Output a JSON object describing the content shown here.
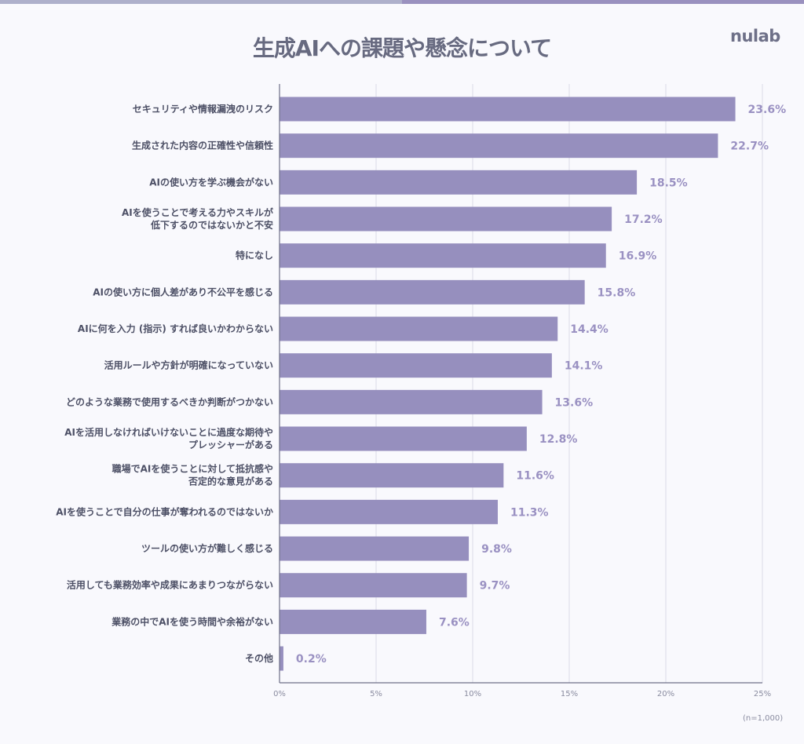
{
  "logo": "nulab",
  "note": "(n=1,000)",
  "colors": {
    "bar": "#968fbe",
    "value": "#9a91c2",
    "strip_left": "#aeb0cb",
    "strip_right": "#9a91bf"
  },
  "chart_data": {
    "type": "bar",
    "orientation": "horizontal",
    "title": "生成AIへの課題や懸念について",
    "categories": [
      [
        "セキュリティや情報漏洩のリスク"
      ],
      [
        "生成された内容の正確性や信頼性"
      ],
      [
        "AIの使い方を学ぶ機会がない"
      ],
      [
        "AIを使うことで考える力やスキルが",
        "低下するのではないかと不安"
      ],
      [
        "特になし"
      ],
      [
        "AIの使い方に個人差があり不公平を感じる"
      ],
      [
        "AIに何を入力 (指示) すれば良いかわからない"
      ],
      [
        "活用ルールや方針が明確になっていない"
      ],
      [
        "どのような業務で使用するべきか判断がつかない"
      ],
      [
        "AIを活用しなければいけないことに過度な期待や",
        "プレッシャーがある"
      ],
      [
        "職場でAIを使うことに対して抵抗感や",
        "否定的な意見がある"
      ],
      [
        "AIを使うことで自分の仕事が奪われるのではないか"
      ],
      [
        "ツールの使い方が難しく感じる"
      ],
      [
        "活用しても業務効率や成果にあまりつながらない"
      ],
      [
        "業務の中でAIを使う時間や余裕がない"
      ],
      [
        "その他"
      ]
    ],
    "values": [
      23.6,
      22.7,
      18.5,
      17.2,
      16.9,
      15.8,
      14.4,
      14.1,
      13.6,
      12.8,
      11.6,
      11.3,
      9.8,
      9.7,
      7.6,
      0.2
    ],
    "value_labels": [
      "23.6%",
      "22.7%",
      "18.5%",
      "17.2%",
      "16.9%",
      "15.8%",
      "14.4%",
      "14.1%",
      "13.6%",
      "12.8%",
      "11.6%",
      "11.3%",
      "9.8%",
      "9.7%",
      "7.6%",
      "0.2%"
    ],
    "xlim": [
      0,
      25
    ],
    "xticks": [
      0,
      5,
      10,
      15,
      20,
      25
    ],
    "xtick_labels": [
      "0%",
      "5%",
      "10%",
      "15%",
      "20%",
      "25%"
    ],
    "grid": true,
    "xlabel": "",
    "ylabel": ""
  }
}
